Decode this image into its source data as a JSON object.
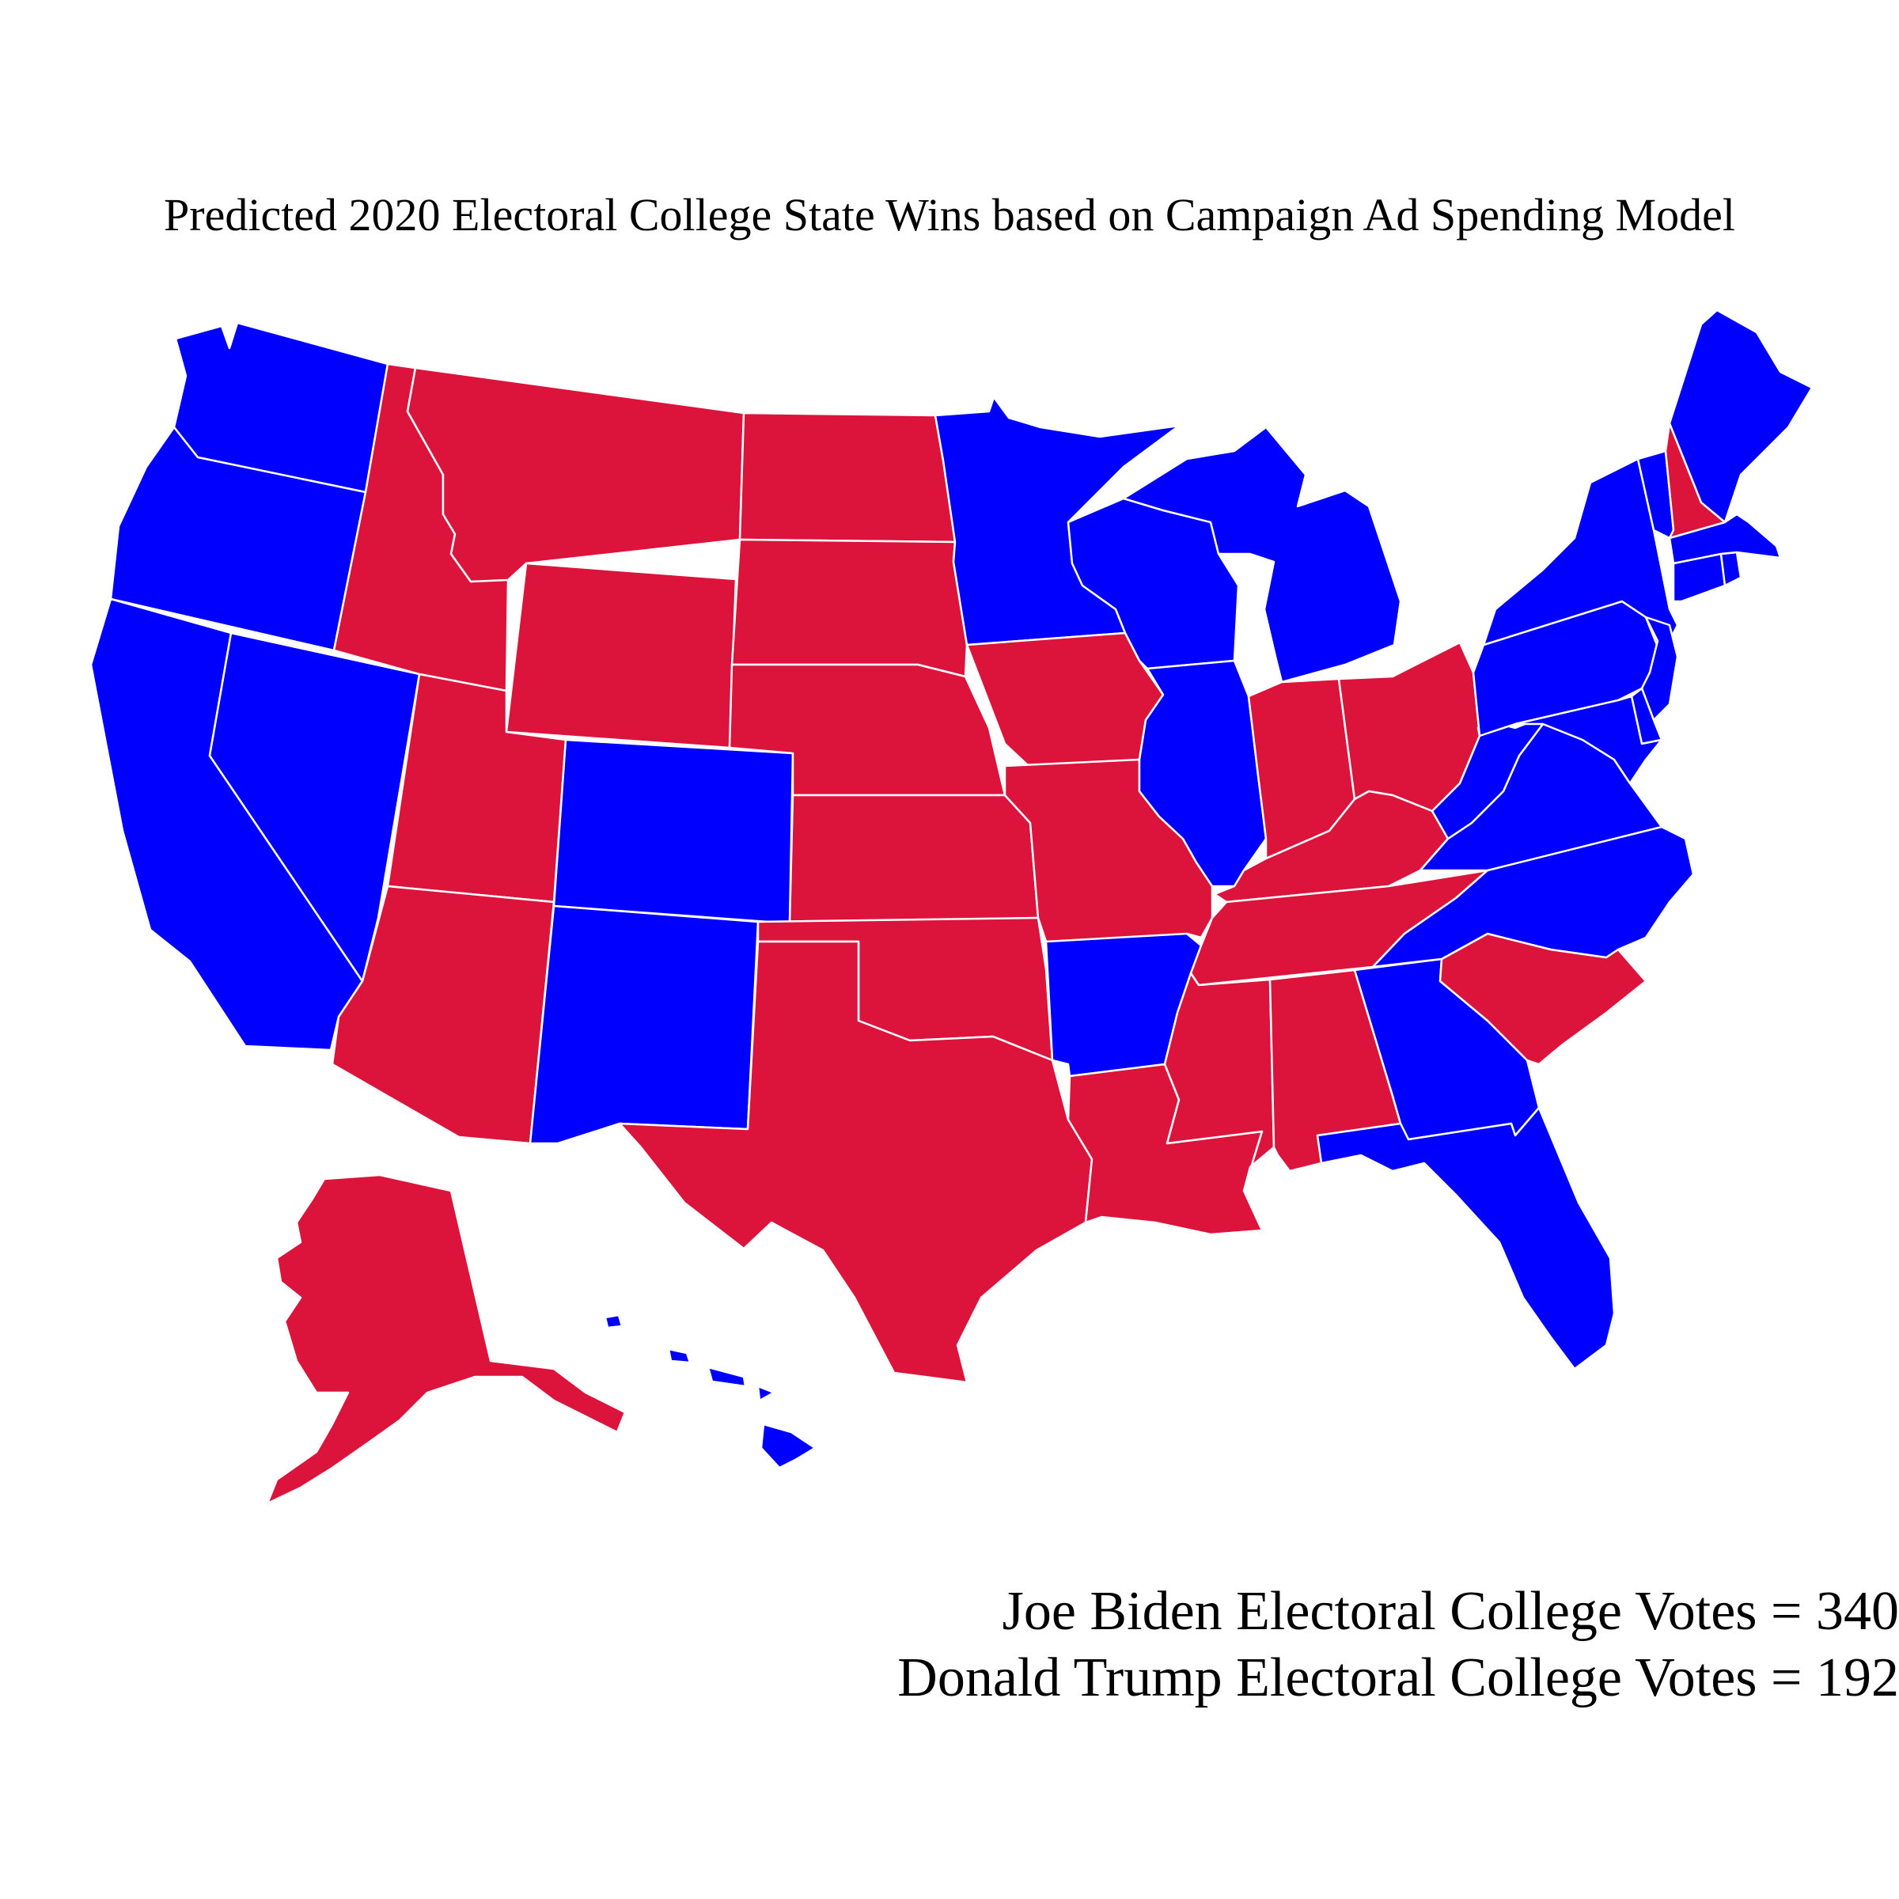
{
  "title": "Predicted 2020 Electoral College State Wins based on Campaign Ad Spending Model",
  "colors": {
    "biden": "#0000ff",
    "trump": "#dc143c",
    "border": "#ffffff"
  },
  "legend": {
    "biden_line": "Joe Biden Electoral College Votes = 340",
    "trump_line": "Donald Trump Electoral College Votes = 192"
  },
  "states": {
    "WA": "biden",
    "OR": "biden",
    "CA": "biden",
    "NV": "biden",
    "ID": "trump",
    "MT": "trump",
    "WY": "trump",
    "UT": "trump",
    "AZ": "trump",
    "CO": "biden",
    "NM": "biden",
    "ND": "trump",
    "SD": "trump",
    "NE": "trump",
    "KS": "trump",
    "OK": "trump",
    "TX": "trump",
    "MN": "biden",
    "IA": "trump",
    "MO": "trump",
    "AR": "biden",
    "LA": "trump",
    "WI": "biden",
    "IL": "biden",
    "MI": "biden",
    "IN": "trump",
    "OH": "trump",
    "KY": "trump",
    "TN": "trump",
    "MS": "trump",
    "AL": "trump",
    "GA": "biden",
    "FL": "biden",
    "SC": "trump",
    "NC": "biden",
    "VA": "biden",
    "WV": "biden",
    "PA": "biden",
    "NY": "biden",
    "NJ": "biden",
    "DE": "biden",
    "MD": "biden",
    "CT": "biden",
    "RI": "biden",
    "MA": "biden",
    "VT": "biden",
    "NH": "trump",
    "ME": "biden",
    "AK": "trump",
    "HI": "biden"
  }
}
